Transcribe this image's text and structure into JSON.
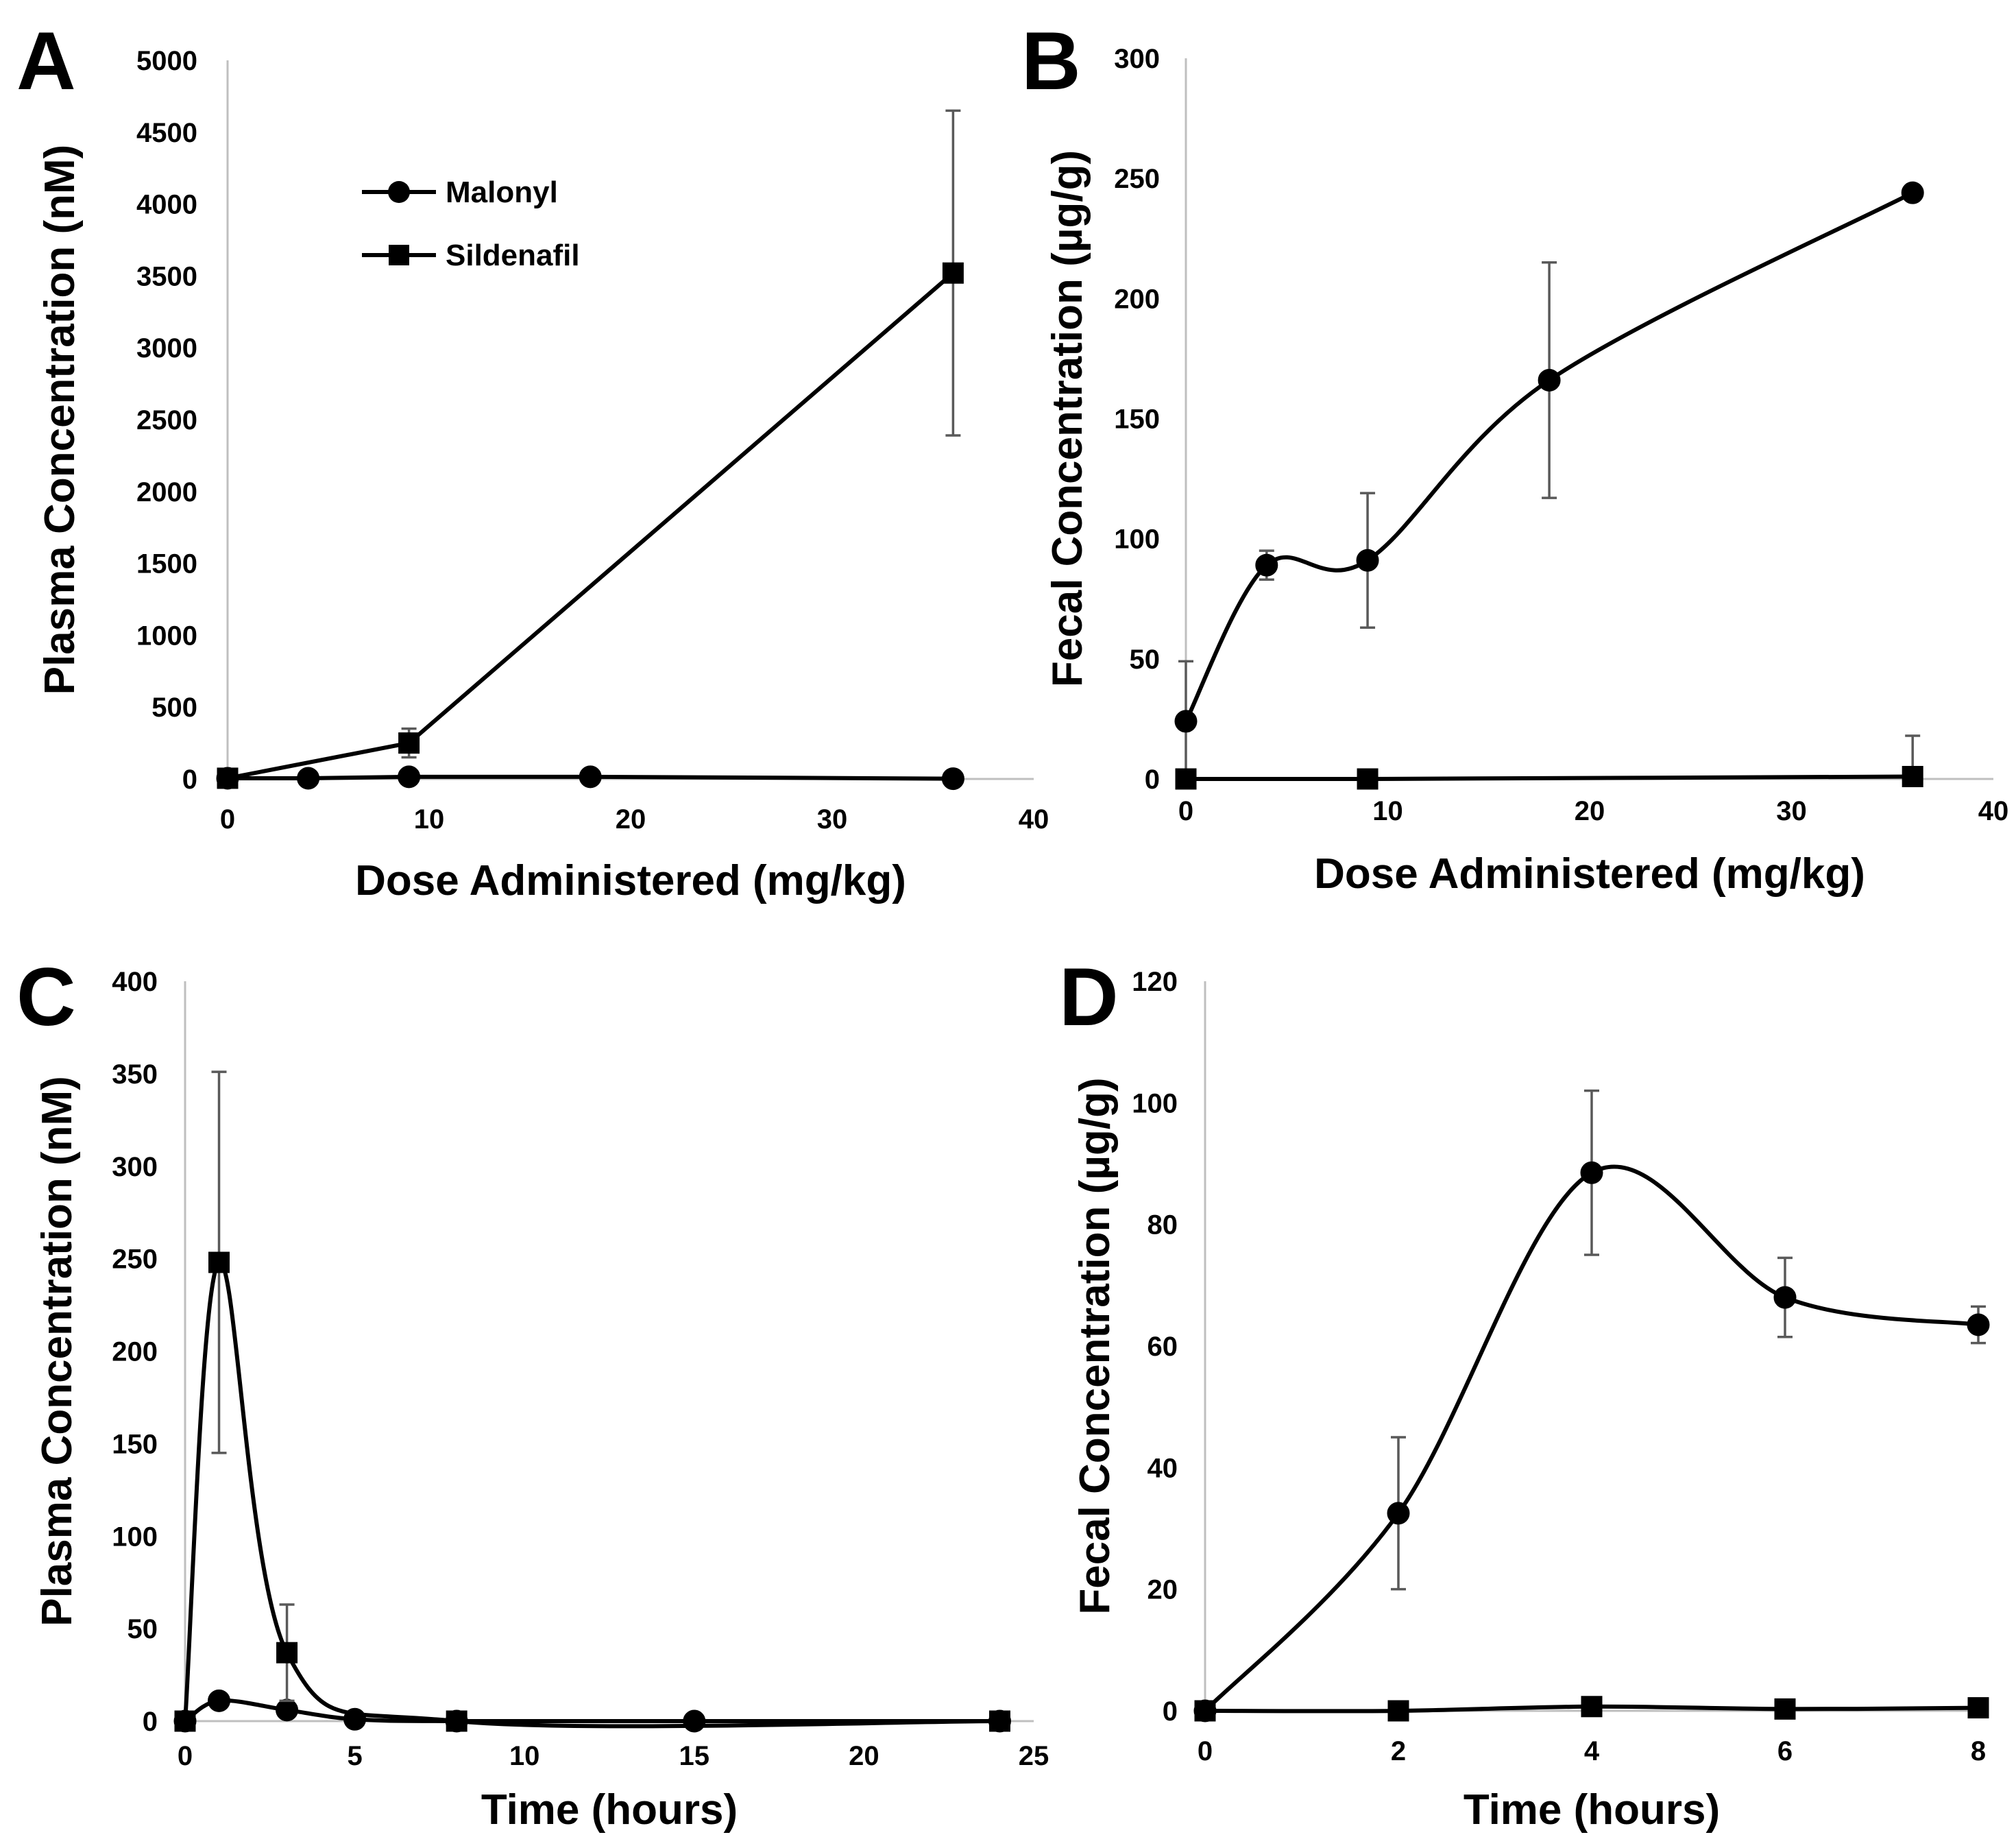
{
  "colors": {
    "series": "#000000",
    "axis": "#bfbfbf",
    "error_bar": "#595959",
    "background": "#ffffff"
  },
  "chart_data": [
    {
      "id": "A",
      "panel": "A",
      "type": "line",
      "xlabel": "Dose Administered  (mg/kg)",
      "ylabel": "Plasma Concentration (nM)",
      "xlim": [
        0,
        40
      ],
      "ylim": [
        0,
        5000
      ],
      "xticks": [
        "0",
        "10",
        "20",
        "30",
        "40"
      ],
      "yticks": [
        "0",
        "500",
        "1000",
        "1500",
        "2000",
        "2500",
        "3000",
        "3500",
        "4000",
        "4500",
        "5000"
      ],
      "smooth": false,
      "legend": {
        "position": "top-left",
        "entries": [
          "Malonyl",
          "Sildenafil"
        ]
      },
      "series": [
        {
          "name": "Malonyl",
          "marker": "circle",
          "x": [
            0,
            4,
            9,
            18,
            36
          ],
          "y": [
            5,
            5,
            15,
            15,
            2
          ],
          "err": [
            0,
            0,
            0,
            0,
            0
          ]
        },
        {
          "name": "Sildenafil",
          "marker": "square",
          "x": [
            0,
            9,
            36
          ],
          "y": [
            5,
            250,
            3520
          ],
          "err": [
            0,
            100,
            1130
          ]
        }
      ]
    },
    {
      "id": "B",
      "panel": "B",
      "type": "line",
      "xlabel": "Dose Administered  (mg/kg)",
      "ylabel": "Fecal Concentration (µg/g)",
      "xlim": [
        0,
        40
      ],
      "ylim": [
        0,
        300
      ],
      "xticks": [
        "0",
        "10",
        "20",
        "30",
        "40"
      ],
      "yticks": [
        "0",
        "50",
        "100",
        "150",
        "200",
        "250",
        "300"
      ],
      "smooth": true,
      "series": [
        {
          "name": "Malonyl",
          "marker": "circle",
          "x": [
            0,
            4,
            9,
            18,
            36
          ],
          "y": [
            24,
            89,
            91,
            166,
            244
          ],
          "err": [
            25,
            6,
            28,
            49,
            0
          ]
        },
        {
          "name": "Sildenafil",
          "marker": "square",
          "x": [
            0,
            9,
            36
          ],
          "y": [
            0,
            0,
            1
          ],
          "err": [
            0,
            0,
            17
          ]
        }
      ]
    },
    {
      "id": "C",
      "panel": "C",
      "type": "line",
      "xlabel": "Time (hours)",
      "ylabel": "Plasma Concentration (nM)",
      "xlim": [
        0,
        25
      ],
      "ylim": [
        0,
        400
      ],
      "xticks": [
        "0",
        "5",
        "10",
        "15",
        "20",
        "25"
      ],
      "yticks": [
        "0",
        "50",
        "100",
        "150",
        "200",
        "250",
        "300",
        "350",
        "400"
      ],
      "smooth": true,
      "series": [
        {
          "name": "Malonyl",
          "marker": "circle",
          "x": [
            0,
            1,
            3,
            5,
            8,
            15,
            24
          ],
          "y": [
            0,
            11,
            6,
            1,
            0,
            0,
            0
          ],
          "err": [
            0,
            0,
            0,
            0,
            0,
            0,
            0
          ]
        },
        {
          "name": "Sildenafil",
          "marker": "square",
          "x": [
            0,
            1,
            3,
            8,
            24
          ],
          "y": [
            0,
            248,
            37,
            0,
            0
          ],
          "err": [
            0,
            103,
            26,
            0,
            0
          ]
        }
      ]
    },
    {
      "id": "D",
      "panel": "D",
      "type": "line",
      "xlabel": "Time (hours)",
      "ylabel": "Fecal Concentration (µg/g)",
      "xlim": [
        0,
        8
      ],
      "ylim": [
        0,
        120
      ],
      "xticks": [
        "0",
        "2",
        "4",
        "6",
        "8"
      ],
      "yticks": [
        "0",
        "20",
        "40",
        "60",
        "80",
        "100",
        "120"
      ],
      "smooth": true,
      "series": [
        {
          "name": "Malonyl",
          "marker": "circle",
          "x": [
            0,
            2,
            4,
            6,
            8
          ],
          "y": [
            0,
            32.5,
            88.5,
            68,
            63.5
          ],
          "err": [
            0,
            12.5,
            13.5,
            6.5,
            3
          ]
        },
        {
          "name": "Sildenafil",
          "marker": "square",
          "x": [
            0,
            2,
            4,
            6,
            8
          ],
          "y": [
            0,
            0,
            0.7,
            0.3,
            0.5
          ],
          "err": [
            0,
            0,
            0,
            0,
            0
          ]
        }
      ]
    }
  ]
}
